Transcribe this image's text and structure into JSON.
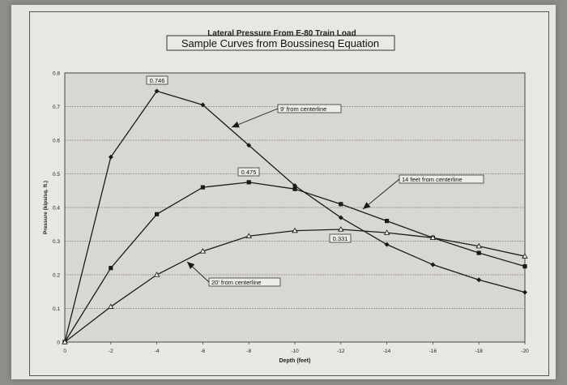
{
  "chart_data": {
    "type": "line",
    "title": "Lateral Pressure From E-80 Train Load",
    "subtitle": "Sample Curves from Boussinesq Equation",
    "xlabel": "Depth (feet)",
    "ylabel": "Pressure (kips/sq. ft.)",
    "x": [
      0,
      -2,
      -4,
      -6,
      -8,
      -10,
      -12,
      -14,
      -16,
      -18,
      -20
    ],
    "x_tick_labels": [
      "0",
      "-2",
      "-4",
      "-6",
      "-8",
      "-10",
      "-12",
      "-14",
      "-16",
      "-18",
      "-20"
    ],
    "xlim": [
      0,
      -20
    ],
    "ylim": [
      0,
      0.8
    ],
    "y_ticks": [
      0,
      0.1,
      0.2,
      0.3,
      0.4,
      0.5,
      0.6,
      0.7,
      0.8
    ],
    "y_tick_labels": [
      "0",
      "0.1",
      "0.2",
      "0.3",
      "0.4",
      "0.5",
      "0.6",
      "0.7",
      "0.8"
    ],
    "grid": true,
    "series": [
      {
        "name": "9' from centerline",
        "marker": "diamond",
        "values": [
          0,
          0.55,
          0.746,
          0.705,
          0.585,
          0.465,
          0.37,
          0.29,
          0.23,
          0.185,
          0.148
        ]
      },
      {
        "name": "14 feet from centerline",
        "marker": "square",
        "values": [
          0,
          0.22,
          0.38,
          0.46,
          0.475,
          0.455,
          0.41,
          0.36,
          0.31,
          0.265,
          0.225
        ]
      },
      {
        "name": "20' from centerline",
        "marker": "triangle",
        "values": [
          0,
          0.105,
          0.2,
          0.27,
          0.315,
          0.331,
          0.335,
          0.325,
          0.31,
          0.285,
          0.255
        ]
      }
    ],
    "annotations": [
      {
        "text": "0.746",
        "series": 0,
        "point": 2
      },
      {
        "text": "0.475",
        "series": 1,
        "point": 4
      },
      {
        "text": "0.331",
        "series": 2,
        "point": 5
      }
    ],
    "colors": {
      "line": "#1a1a1a",
      "plot_background": "#d9d7d3",
      "grid": "#8a8884"
    }
  }
}
